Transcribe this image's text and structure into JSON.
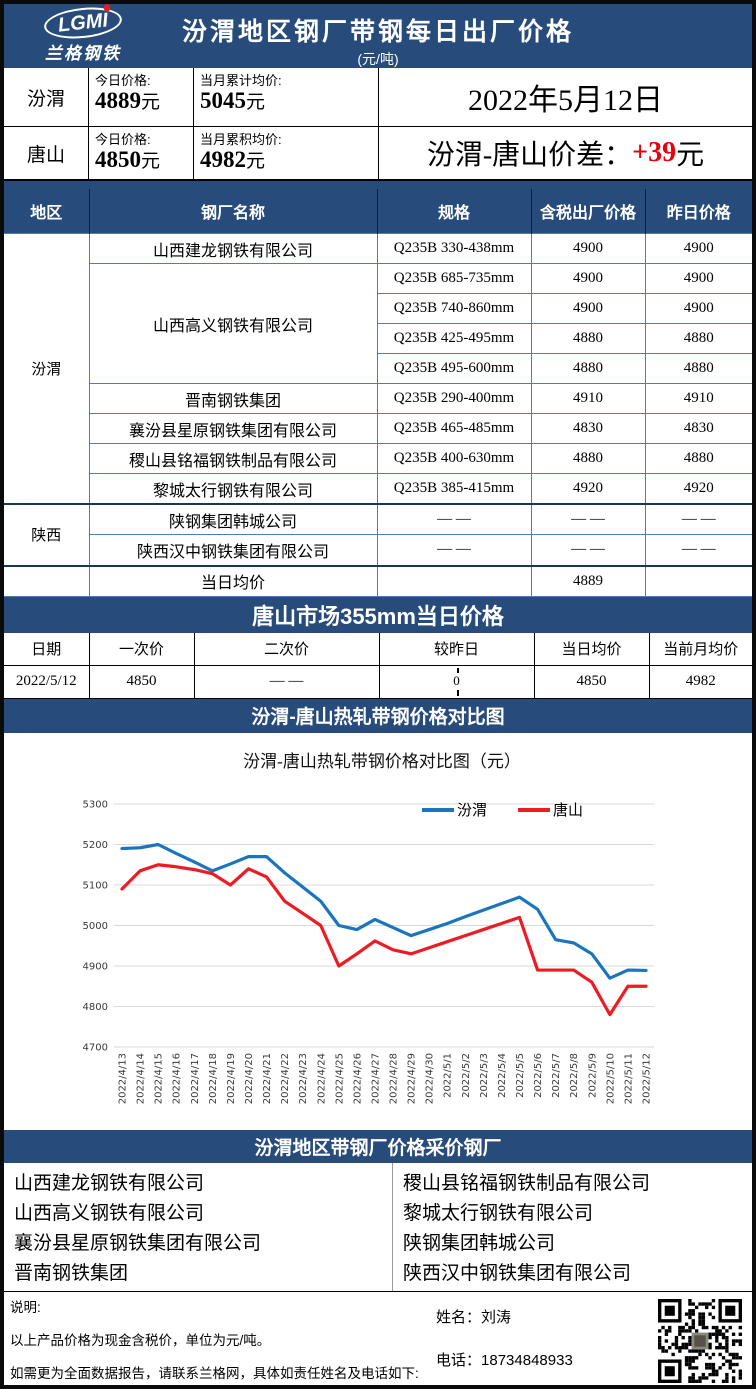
{
  "header": {
    "logo_text": "LGMI",
    "logo_sub": "兰格钢铁",
    "title": "汾渭地区钢厂带钢每日出厂价格",
    "subtitle": "(元/吨)"
  },
  "summary": {
    "rows": [
      {
        "region": "汾渭",
        "today_label": "今日价格:",
        "today_value": "4889",
        "unit": "元",
        "avg_label": "当月累计均价:",
        "avg_value": "5045"
      },
      {
        "region": "唐山",
        "today_label": "今日价格:",
        "today_value": "4850",
        "unit": "元",
        "avg_label": "当月累积均价:",
        "avg_value": "4982"
      }
    ],
    "date": "2022年5月12日",
    "diff_label": "汾渭-唐山价差：",
    "diff_value": "+39",
    "diff_unit": "元"
  },
  "price_table": {
    "headers": [
      "地区",
      "钢厂名称",
      "规格",
      "含税出厂价格",
      "昨日价格"
    ],
    "regions": [
      {
        "name": "汾渭"
      },
      {
        "name": "陕西"
      }
    ],
    "rows": [
      {
        "name": "山西建龙钢铁有限公司",
        "spec": "Q235B 330-438mm",
        "price": "4900",
        "prev": "4900"
      },
      {
        "name": "山西高义钢铁有限公司",
        "spec": "Q235B 685-735mm",
        "price": "4900",
        "prev": "4900"
      },
      {
        "spec": "Q235B 740-860mm",
        "price": "4900",
        "prev": "4900"
      },
      {
        "spec": "Q235B 425-495mm",
        "price": "4880",
        "prev": "4880"
      },
      {
        "spec": "Q235B 495-600mm",
        "price": "4880",
        "prev": "4880"
      },
      {
        "name": "晋南钢铁集团",
        "spec": "Q235B 290-400mm",
        "price": "4910",
        "prev": "4910"
      },
      {
        "name": "襄汾县星原钢铁集团有限公司",
        "spec": "Q235B 465-485mm",
        "price": "4830",
        "prev": "4830"
      },
      {
        "name": "稷山县铭福钢铁制品有限公司",
        "spec": "Q235B 400-630mm",
        "price": "4880",
        "prev": "4880"
      },
      {
        "name": "黎城太行钢铁有限公司",
        "spec": "Q235B 385-415mm",
        "price": "4920",
        "prev": "4920"
      },
      {
        "name": "陕钢集团韩城公司",
        "spec": "— —",
        "price": "— —",
        "prev": "— —"
      },
      {
        "name": "陕西汉中钢铁集团有限公司",
        "spec": "— —",
        "price": "— —",
        "prev": "— —"
      },
      {
        "name": "当日均价",
        "spec": "",
        "price": "4889",
        "prev": ""
      }
    ]
  },
  "tangshan_table": {
    "title": "唐山市场355mm当日价格",
    "headers": [
      "日期",
      "一次价",
      "二次价",
      "较昨日",
      "当日均价",
      "当前月均价"
    ],
    "row": {
      "date": "2022/5/12",
      "first": "4850",
      "second": "— —",
      "change": "0",
      "avg": "4850",
      "month_avg": "4982"
    }
  },
  "chart_section": {
    "bar_title": "汾渭-唐山热轧带钢价格对比图"
  },
  "chart_data": {
    "type": "line",
    "title": "汾渭-唐山热轧带钢价格对比图（元）",
    "ylim": [
      4700,
      5300
    ],
    "ytick_step": 100,
    "grid": true,
    "legend_position": "top-center",
    "x": [
      "2022/4/13",
      "2022/4/14",
      "2022/4/15",
      "2022/4/16",
      "2022/4/17",
      "2022/4/18",
      "2022/4/19",
      "2022/4/20",
      "2022/4/21",
      "2022/4/22",
      "2022/4/23",
      "2022/4/24",
      "2022/4/25",
      "2022/4/26",
      "2022/4/27",
      "2022/4/28",
      "2022/4/29",
      "2022/4/30",
      "2022/5/1",
      "2022/5/2",
      "2022/5/3",
      "2022/5/4",
      "2022/5/5",
      "2022/5/6",
      "2022/5/7",
      "2022/5/8",
      "2022/5/9",
      "2022/5/10",
      "2022/5/11",
      "2022/5/12"
    ],
    "series": [
      {
        "name": "汾渭",
        "color": "#1b75bc",
        "values": [
          5190,
          5192,
          5200,
          5178,
          5157,
          5135,
          5152,
          5170,
          5170,
          5130,
          5095,
          5060,
          5000,
          4990,
          5015,
          4995,
          4975,
          4990,
          5005,
          5022,
          5038,
          5054,
          5070,
          5040,
          4965,
          4957,
          4930,
          4870,
          4890,
          4889
        ]
      },
      {
        "name": "唐山",
        "color": "#ec1c24",
        "values": [
          5090,
          5135,
          5150,
          5145,
          5138,
          5128,
          5100,
          5140,
          5120,
          5060,
          5030,
          5000,
          4900,
          4930,
          4962,
          4940,
          4930,
          4945,
          4960,
          4975,
          4990,
          5005,
          5020,
          4890,
          4890,
          4890,
          4860,
          4780,
          4850,
          4850
        ]
      }
    ]
  },
  "suppliers": {
    "title": "汾渭地区带钢厂价格采价钢厂",
    "left": [
      "山西建龙钢铁有限公司",
      "山西高义钢铁有限公司",
      "襄汾县星原钢铁集团有限公司",
      "晋南钢铁集团"
    ],
    "right": [
      "稷山县铭福钢铁制品有限公司",
      "黎城太行钢铁有限公司",
      "陕钢集团韩城公司",
      "陕西汉中钢铁集团有限公司"
    ]
  },
  "footer": {
    "note_title": "说明:",
    "note1": "以上产品价格为现金含税价，单位为元/吨。",
    "note2": "如需更为全面数据报告，请联系兰格网，具体如责任姓名及电话如下:",
    "name_label": "姓名：",
    "name": "刘涛",
    "phone_label": "电话：",
    "phone": "18734848933"
  }
}
